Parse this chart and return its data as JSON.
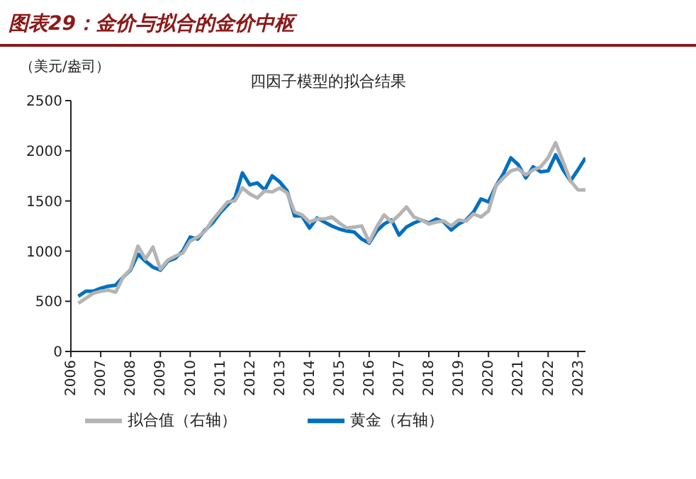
{
  "chart_data": {
    "type": "line",
    "title": "图表29：金价与拟合的金价中枢",
    "subtitle": "四因子模型的拟合结果",
    "ylabel": "（美元/盎司）",
    "x": [
      2006.25,
      2006.5,
      2006.75,
      2007,
      2007.25,
      2007.5,
      2007.75,
      2008,
      2008.25,
      2008.5,
      2008.75,
      2009,
      2009.25,
      2009.5,
      2009.75,
      2010,
      2010.25,
      2010.5,
      2010.75,
      2011,
      2011.25,
      2011.5,
      2011.75,
      2012,
      2012.25,
      2012.5,
      2012.75,
      2013,
      2013.25,
      2013.5,
      2013.75,
      2014,
      2014.25,
      2014.5,
      2014.75,
      2015,
      2015.25,
      2015.5,
      2015.75,
      2016,
      2016.25,
      2016.5,
      2016.75,
      2017,
      2017.25,
      2017.5,
      2017.75,
      2018,
      2018.25,
      2018.5,
      2018.75,
      2019,
      2019.25,
      2019.5,
      2019.75,
      2020,
      2020.25,
      2020.5,
      2020.75,
      2021,
      2021.25,
      2021.5,
      2021.75,
      2022,
      2022.25,
      2022.5,
      2022.75,
      2023,
      2023.25
    ],
    "series": [
      {
        "name": "黄金（右轴）",
        "color": "#0070c0",
        "values": [
          550,
          600,
          600,
          630,
          650,
          660,
          740,
          810,
          970,
          900,
          840,
          810,
          900,
          930,
          1000,
          1140,
          1120,
          1210,
          1280,
          1380,
          1460,
          1530,
          1780,
          1660,
          1680,
          1610,
          1750,
          1690,
          1600,
          1350,
          1350,
          1230,
          1330,
          1290,
          1250,
          1220,
          1200,
          1190,
          1120,
          1080,
          1200,
          1270,
          1310,
          1160,
          1240,
          1280,
          1310,
          1280,
          1320,
          1290,
          1210,
          1270,
          1310,
          1390,
          1520,
          1490,
          1650,
          1770,
          1930,
          1860,
          1730,
          1840,
          1790,
          1800,
          1960,
          1810,
          1700,
          1810,
          1930
        ]
      },
      {
        "name": "拟合值（右轴）",
        "color": "#b4b4b4",
        "values": [
          480,
          530,
          580,
          600,
          610,
          590,
          740,
          820,
          1050,
          920,
          1040,
          820,
          910,
          950,
          980,
          1100,
          1140,
          1200,
          1310,
          1400,
          1490,
          1500,
          1630,
          1570,
          1530,
          1600,
          1590,
          1630,
          1580,
          1390,
          1360,
          1290,
          1320,
          1320,
          1340,
          1280,
          1230,
          1240,
          1250,
          1090,
          1240,
          1360,
          1290,
          1360,
          1440,
          1340,
          1310,
          1270,
          1290,
          1300,
          1250,
          1310,
          1300,
          1370,
          1340,
          1400,
          1650,
          1730,
          1800,
          1820,
          1760,
          1810,
          1840,
          1930,
          2080,
          1890,
          1700,
          1610,
          1610
        ]
      }
    ],
    "xlim": [
      2006,
      2023.25
    ],
    "xticks": [
      2006,
      2007,
      2008,
      2009,
      2010,
      2011,
      2012,
      2013,
      2014,
      2015,
      2016,
      2017,
      2018,
      2019,
      2020,
      2021,
      2022,
      2023
    ],
    "ylim": [
      0,
      2500
    ],
    "yticks": [
      0,
      500,
      1000,
      1500,
      2000,
      2500
    ],
    "grid": false,
    "legend": "bottom",
    "marker": "none",
    "line_style": "solid"
  }
}
